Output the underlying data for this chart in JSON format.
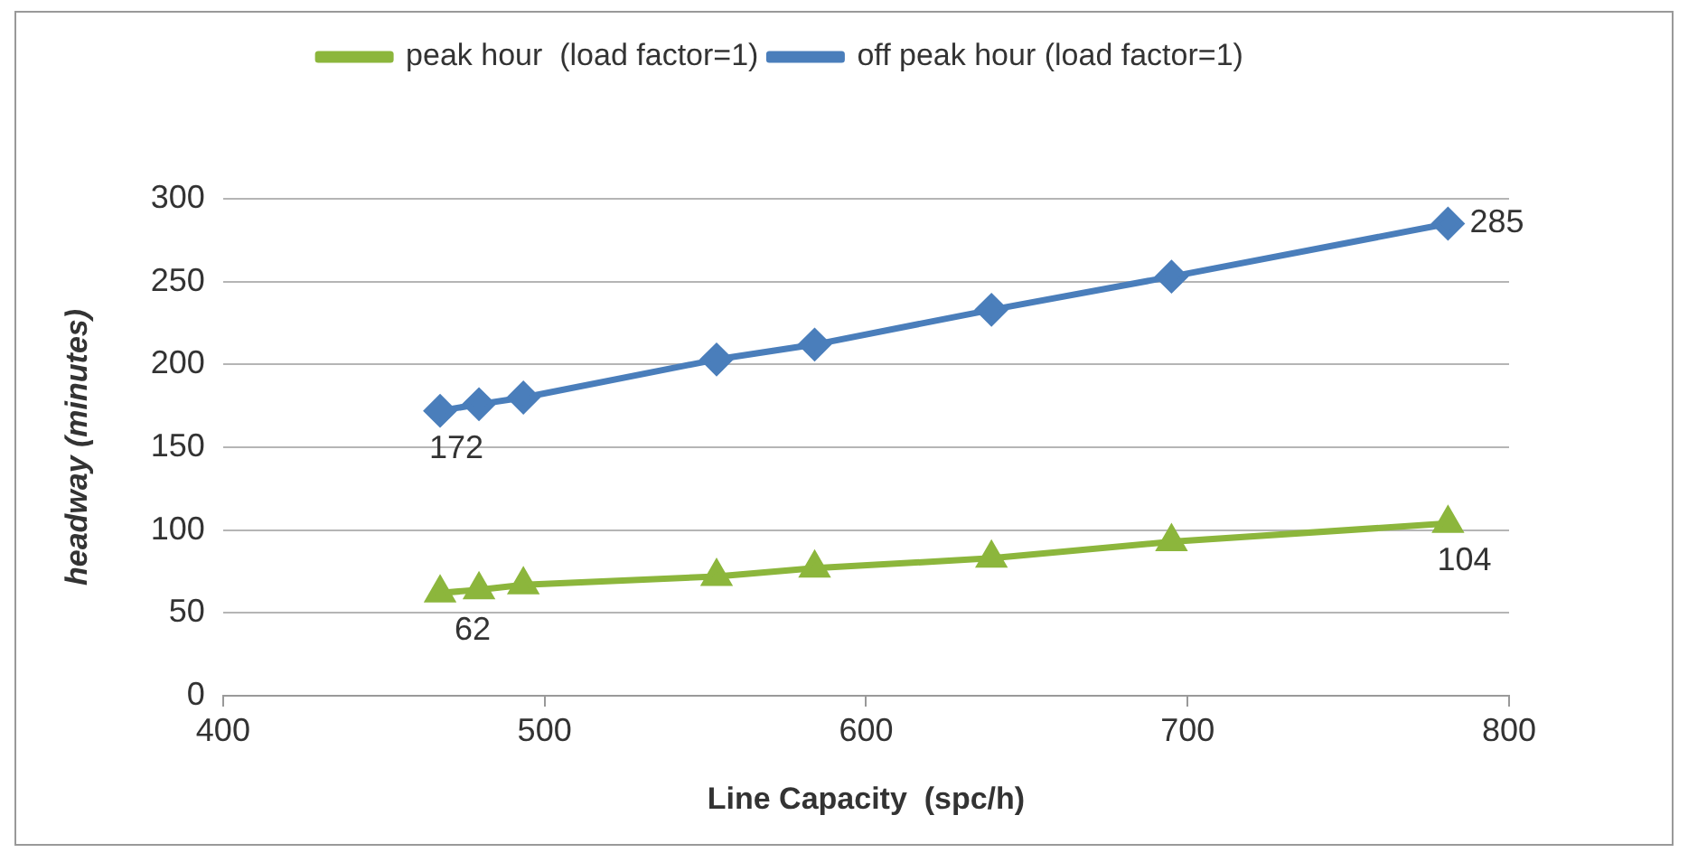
{
  "chart_data": {
    "type": "line",
    "xlabel": "Line Capacity  (spc/h)",
    "ylabel": "headway (minutes)",
    "x": [
      467.5,
      479.6,
      493.4,
      553.5,
      584,
      639,
      695,
      781
    ],
    "series": [
      {
        "name": "peak hour  (load factor=1)",
        "color": "#8cb63c",
        "marker": "triangle",
        "values": [
          62,
          64,
          67,
          72,
          77,
          83,
          93,
          104
        ],
        "value_labels": [
          "62",
          null,
          null,
          null,
          null,
          null,
          null,
          "104"
        ]
      },
      {
        "name": "off peak hour (load factor=1)",
        "color": "#4a7ebb",
        "marker": "diamond",
        "values": [
          172,
          176,
          180,
          203,
          212,
          233,
          253,
          285
        ],
        "value_labels": [
          "172",
          null,
          null,
          null,
          null,
          null,
          null,
          "285"
        ]
      }
    ],
    "xlim": [
      400,
      800
    ],
    "xticks": [
      400,
      500,
      600,
      700,
      800
    ],
    "ylim": [
      0,
      300
    ],
    "yticks": [
      0,
      50,
      100,
      150,
      200,
      250,
      300
    ],
    "grid": "y",
    "legend": "top"
  }
}
